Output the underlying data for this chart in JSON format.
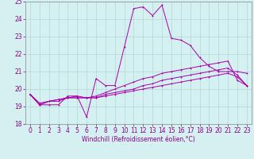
{
  "xlabel": "Windchill (Refroidissement éolien,°C)",
  "bg_color": "#d5f0f0",
  "grid_color": "#b0d8d8",
  "line_color": "#aa00aa",
  "xlim": [
    -0.5,
    23.5
  ],
  "ylim": [
    18,
    25
  ],
  "xticks": [
    0,
    1,
    2,
    3,
    4,
    5,
    6,
    7,
    8,
    9,
    10,
    11,
    12,
    13,
    14,
    15,
    16,
    17,
    18,
    19,
    20,
    21,
    22,
    23
  ],
  "yticks": [
    18,
    19,
    20,
    21,
    22,
    23,
    24,
    25
  ],
  "line1_x": [
    0,
    1,
    2,
    3,
    4,
    5,
    6,
    7,
    8,
    9,
    10,
    11,
    12,
    13,
    14,
    15,
    16,
    17,
    18,
    19,
    20,
    21,
    22,
    23
  ],
  "line1_y": [
    19.7,
    19.1,
    19.1,
    19.1,
    19.6,
    19.6,
    18.4,
    20.6,
    20.2,
    20.2,
    22.4,
    24.6,
    24.7,
    24.2,
    24.8,
    22.9,
    22.8,
    22.5,
    21.8,
    21.3,
    21.0,
    21.0,
    21.0,
    20.9
  ],
  "line2_x": [
    0,
    1,
    2,
    3,
    4,
    5,
    6,
    7,
    8,
    9,
    10,
    11,
    12,
    13,
    14,
    15,
    16,
    17,
    18,
    19,
    20,
    21,
    22,
    23
  ],
  "line2_y": [
    19.7,
    19.1,
    19.3,
    19.3,
    19.5,
    19.5,
    19.5,
    19.6,
    19.8,
    20.0,
    20.2,
    20.4,
    20.6,
    20.7,
    20.9,
    21.0,
    21.1,
    21.2,
    21.3,
    21.4,
    21.5,
    21.6,
    20.5,
    20.2
  ],
  "line3_x": [
    0,
    1,
    2,
    3,
    4,
    5,
    6,
    7,
    8,
    9,
    10,
    11,
    12,
    13,
    14,
    15,
    16,
    17,
    18,
    19,
    20,
    21,
    22,
    23
  ],
  "line3_y": [
    19.7,
    19.1,
    19.3,
    19.4,
    19.5,
    19.6,
    19.5,
    19.5,
    19.7,
    19.8,
    19.9,
    20.0,
    20.2,
    20.3,
    20.5,
    20.6,
    20.7,
    20.8,
    20.9,
    21.0,
    21.1,
    21.2,
    20.8,
    20.2
  ],
  "line4_x": [
    0,
    1,
    2,
    3,
    4,
    5,
    6,
    7,
    8,
    9,
    10,
    11,
    12,
    13,
    14,
    15,
    16,
    17,
    18,
    19,
    20,
    21,
    22,
    23
  ],
  "line4_y": [
    19.7,
    19.2,
    19.3,
    19.4,
    19.5,
    19.5,
    19.5,
    19.5,
    19.6,
    19.7,
    19.8,
    19.9,
    20.0,
    20.1,
    20.2,
    20.3,
    20.4,
    20.5,
    20.6,
    20.7,
    20.8,
    20.9,
    20.7,
    20.2
  ],
  "tick_fontsize": 5.5,
  "xlabel_fontsize": 5.5,
  "lw": 0.7,
  "ms": 2.0
}
